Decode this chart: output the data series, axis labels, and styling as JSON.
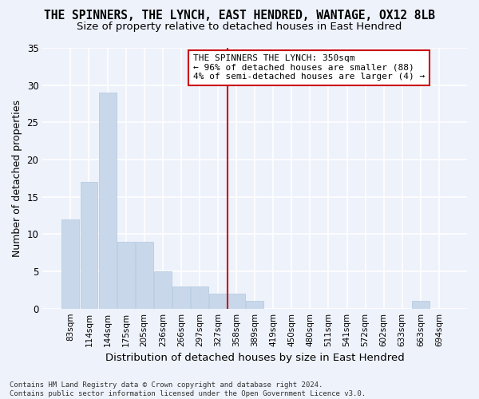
{
  "title": "THE SPINNERS, THE LYNCH, EAST HENDRED, WANTAGE, OX12 8LB",
  "subtitle": "Size of property relative to detached houses in East Hendred",
  "xlabel": "Distribution of detached houses by size in East Hendred",
  "ylabel": "Number of detached properties",
  "bar_color": "#c8d8ea",
  "bar_edge_color": "#b0c8de",
  "categories": [
    "83sqm",
    "114sqm",
    "144sqm",
    "175sqm",
    "205sqm",
    "236sqm",
    "266sqm",
    "297sqm",
    "327sqm",
    "358sqm",
    "389sqm",
    "419sqm",
    "450sqm",
    "480sqm",
    "511sqm",
    "541sqm",
    "572sqm",
    "602sqm",
    "633sqm",
    "663sqm",
    "694sqm"
  ],
  "values": [
    12,
    17,
    29,
    9,
    9,
    5,
    3,
    3,
    2,
    2,
    1,
    0,
    0,
    0,
    0,
    0,
    0,
    0,
    0,
    1,
    0
  ],
  "ylim": [
    0,
    35
  ],
  "yticks": [
    0,
    5,
    10,
    15,
    20,
    25,
    30,
    35
  ],
  "vline_x": 8.5,
  "vline_color": "#cc0000",
  "annotation_text": "THE SPINNERS THE LYNCH: 350sqm\n← 96% of detached houses are smaller (88)\n4% of semi-detached houses are larger (4) →",
  "footer_text": "Contains HM Land Registry data © Crown copyright and database right 2024.\nContains public sector information licensed under the Open Government Licence v3.0.",
  "background_color": "#eef2fb",
  "grid_color": "#ffffff",
  "title_fontsize": 10.5,
  "subtitle_fontsize": 9.5,
  "ylabel_fontsize": 9,
  "xlabel_fontsize": 9.5,
  "tick_fontsize": 8.5,
  "xtick_fontsize": 7.5,
  "annot_fontsize": 8,
  "footer_fontsize": 6.5
}
